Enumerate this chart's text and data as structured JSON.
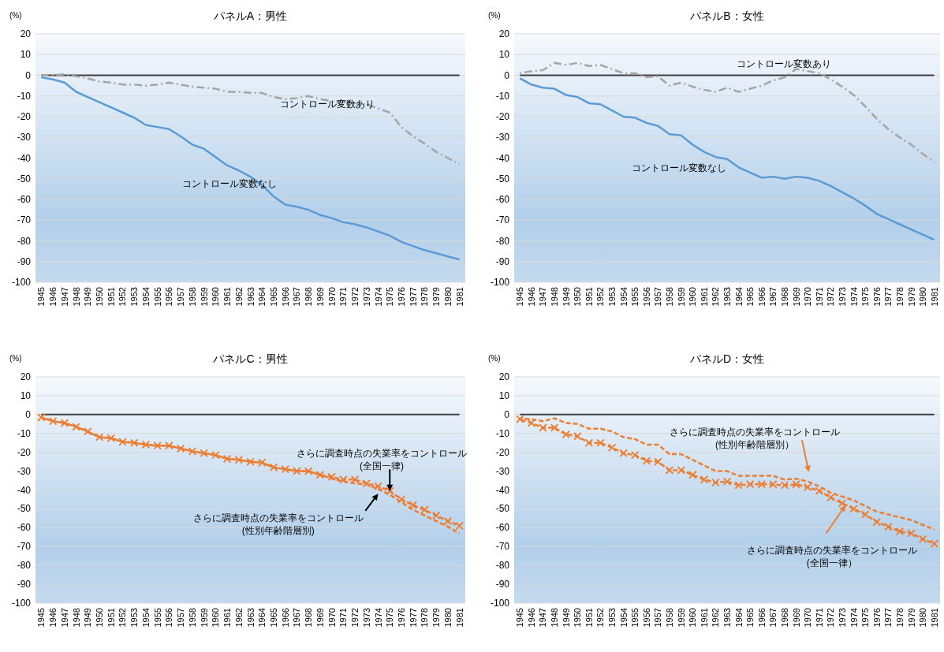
{
  "chart_data": [
    {
      "type": "line",
      "title": "パネルA：男性",
      "ylabel": "(%)",
      "categories": [
        "1945",
        "1946",
        "1947",
        "1948",
        "1949",
        "1950",
        "1951",
        "1952",
        "1953",
        "1954",
        "1955",
        "1956",
        "1957",
        "1958",
        "1959",
        "1960",
        "1961",
        "1962",
        "1963",
        "1964",
        "1965",
        "1966",
        "1967",
        "1968",
        "1969",
        "1970",
        "1971",
        "1972",
        "1973",
        "1974",
        "1975",
        "1976",
        "1977",
        "1978",
        "1979",
        "1980",
        "1981"
      ],
      "ylim": [
        -100,
        20
      ],
      "yticks": [
        -100,
        -90,
        -80,
        -70,
        -60,
        -50,
        -40,
        -30,
        -20,
        -10,
        0,
        10,
        20
      ],
      "grid": "y",
      "series": [
        {
          "color": "#5b9bd5",
          "line_style": "solid",
          "values": [
            -1,
            -2,
            -3.5,
            -8,
            -10.5,
            -13,
            -15.5,
            -18,
            -20.5,
            -24,
            -25,
            -26,
            -29.5,
            -33.5,
            -35.5,
            -39.5,
            -43.5,
            -46,
            -49,
            -53,
            -58.5,
            -62.5,
            -63.5,
            -65,
            -67.5,
            -69,
            -71,
            -72,
            -73.5,
            -75.5,
            -77.5,
            -80.5,
            -82.5,
            -84.5,
            -86,
            -87.5,
            -89
          ]
        },
        {
          "color": "#a5a5a5",
          "line_style": "dashdot",
          "values": [
            0,
            0,
            0.5,
            -0.5,
            -1.5,
            -3,
            -3.5,
            -4.5,
            -4.5,
            -5,
            -4.5,
            -3.5,
            -4.5,
            -5.5,
            -6,
            -6.5,
            -8,
            -8,
            -8.5,
            -8.5,
            -10.5,
            -11.5,
            -11,
            -10,
            -11.5,
            -12.5,
            -13,
            -13.5,
            -14,
            -16,
            -18,
            -25,
            -29.5,
            -33,
            -37,
            -40,
            -43
          ]
        }
      ],
      "ref_lines": [
        {
          "axis": "y",
          "value": 0,
          "color": "#404040"
        }
      ],
      "annotations": [
        "コントロール変数あり",
        "コントロール変数なし"
      ]
    },
    {
      "type": "line",
      "title": "パネルB：女性",
      "ylabel": "(%)",
      "categories": [
        "1945",
        "1946",
        "1947",
        "1948",
        "1949",
        "1950",
        "1951",
        "1952",
        "1953",
        "1954",
        "1955",
        "1956",
        "1957",
        "1958",
        "1959",
        "1960",
        "1961",
        "1962",
        "1963",
        "1964",
        "1965",
        "1966",
        "1967",
        "1968",
        "1969",
        "1970",
        "1971",
        "1972",
        "1973",
        "1974",
        "1975",
        "1976",
        "1977",
        "1978",
        "1979",
        "1980",
        "1981"
      ],
      "ylim": [
        -100,
        20
      ],
      "yticks": [
        -100,
        -90,
        -80,
        -70,
        -60,
        -50,
        -40,
        -30,
        -20,
        -10,
        0,
        10,
        20
      ],
      "grid": "y",
      "series": [
        {
          "color": "#5b9bd5",
          "line_style": "solid",
          "values": [
            -1.5,
            -4.5,
            -6,
            -6.5,
            -9.5,
            -10.5,
            -13.5,
            -14,
            -17,
            -20,
            -20.5,
            -23,
            -24.5,
            -28.5,
            -29,
            -33.5,
            -37,
            -39.5,
            -40.5,
            -44.5,
            -47,
            -49.5,
            -49,
            -50,
            -49,
            -49.5,
            -51,
            -53.5,
            -56.5,
            -59.5,
            -63,
            -67,
            -69.5,
            -72,
            -74.5,
            -77,
            -79.5
          ]
        },
        {
          "color": "#a5a5a5",
          "line_style": "dashdot",
          "values": [
            1,
            2,
            2.5,
            6,
            5,
            6,
            4.5,
            5,
            3,
            1,
            1,
            -1,
            -0.5,
            -5,
            -3.5,
            -5.5,
            -7,
            -8,
            -6,
            -8,
            -6.5,
            -5,
            -2.5,
            -1,
            3,
            2,
            1,
            -2,
            -5.5,
            -9.5,
            -15,
            -21,
            -26,
            -30,
            -33.5,
            -38,
            -42
          ]
        }
      ],
      "ref_lines": [
        {
          "axis": "y",
          "value": 0,
          "color": "#404040"
        }
      ],
      "annotations": [
        "コントロール変数あり",
        "コントロール変数なし"
      ]
    },
    {
      "type": "line",
      "title": "パネルC：男性",
      "ylabel": "(%)",
      "categories": [
        "1945",
        "1946",
        "1947",
        "1948",
        "1949",
        "1950",
        "1951",
        "1952",
        "1953",
        "1954",
        "1955",
        "1956",
        "1957",
        "1958",
        "1959",
        "1960",
        "1961",
        "1962",
        "1963",
        "1964",
        "1965",
        "1966",
        "1967",
        "1968",
        "1969",
        "1970",
        "1971",
        "1972",
        "1973",
        "1974",
        "1975",
        "1976",
        "1977",
        "1978",
        "1979",
        "1980",
        "1981"
      ],
      "ylim": [
        -100,
        20
      ],
      "yticks": [
        -100,
        -90,
        -80,
        -70,
        -60,
        -50,
        -40,
        -30,
        -20,
        -10,
        0,
        10,
        20
      ],
      "grid": "y",
      "series": [
        {
          "color": "#ed7d31",
          "line_style": "dashed",
          "marker": "cross",
          "values": [
            -1.5,
            -3.5,
            -4.5,
            -6.5,
            -9,
            -12,
            -12.5,
            -14.5,
            -15,
            -16,
            -16.5,
            -16.5,
            -18,
            -19.5,
            -20.5,
            -21.5,
            -23.5,
            -24,
            -25,
            -25.5,
            -28,
            -29,
            -30,
            -30,
            -32,
            -33,
            -34.5,
            -34.5,
            -36.5,
            -38,
            -40.5,
            -45,
            -48,
            -50.5,
            -53.5,
            -56.5,
            -59
          ]
        },
        {
          "color": "#ed7d31",
          "line_style": "dashed",
          "values": [
            -1.5,
            -3.5,
            -4.5,
            -6.5,
            -9,
            -12,
            -12.5,
            -14.5,
            -15,
            -16,
            -16.5,
            -16.5,
            -18,
            -19.5,
            -20.5,
            -21.5,
            -23.5,
            -24,
            -25,
            -25.5,
            -28,
            -29,
            -30,
            -30,
            -32,
            -34,
            -35.5,
            -36.5,
            -37,
            -39.5,
            -42.5,
            -46.5,
            -50.5,
            -53.5,
            -56.5,
            -59.5,
            -63
          ]
        }
      ],
      "ref_lines": [
        {
          "axis": "y",
          "value": 0,
          "color": "#404040"
        }
      ],
      "annotations": [
        "さらに調査時点の失業率をコントロール\n(全国一律)",
        "さらに調査時点の失業率をコントロール\n(性別年齢階層別)"
      ]
    },
    {
      "type": "line",
      "title": "パネルD：女性",
      "ylabel": "(%)",
      "categories": [
        "1945",
        "1946",
        "1947",
        "1948",
        "1949",
        "1950",
        "1951",
        "1952",
        "1953",
        "1954",
        "1955",
        "1956",
        "1957",
        "1958",
        "1959",
        "1960",
        "1961",
        "1962",
        "1963",
        "1964",
        "1965",
        "1966",
        "1967",
        "1968",
        "1969",
        "1970",
        "1971",
        "1972",
        "1973",
        "1974",
        "1975",
        "1976",
        "1977",
        "1978",
        "1979",
        "1980",
        "1981"
      ],
      "ylim": [
        -100,
        20
      ],
      "yticks": [
        -100,
        -90,
        -80,
        -70,
        -60,
        -50,
        -40,
        -30,
        -20,
        -10,
        0,
        10,
        20
      ],
      "grid": "y",
      "series": [
        {
          "color": "#ed7d31",
          "line_style": "dashed",
          "values": [
            -2,
            -2.5,
            -3.5,
            -2,
            -4.5,
            -5,
            -7.5,
            -7.5,
            -9,
            -12,
            -13,
            -16,
            -16,
            -21,
            -21,
            -24,
            -27,
            -30,
            -30,
            -32.5,
            -32.5,
            -32.5,
            -32.5,
            -34.5,
            -34,
            -35.5,
            -38,
            -41.5,
            -43.5,
            -45.5,
            -48.5,
            -51.5,
            -53,
            -54.5,
            -56,
            -58.5,
            -61
          ]
        },
        {
          "color": "#ed7d31",
          "line_style": "dashed",
          "marker": "cross",
          "values": [
            -2.5,
            -4.5,
            -7,
            -7,
            -10.5,
            -11.5,
            -15,
            -15,
            -17.5,
            -20.5,
            -21.5,
            -24.5,
            -25,
            -29.5,
            -29.5,
            -32,
            -34.5,
            -36,
            -35.5,
            -37.5,
            -37,
            -37,
            -37,
            -37.5,
            -37,
            -38.5,
            -40.5,
            -44,
            -47,
            -50,
            -53,
            -57,
            -59.5,
            -62,
            -63,
            -66,
            -68.5
          ]
        }
      ],
      "ref_lines": [
        {
          "axis": "y",
          "value": 0,
          "color": "#404040"
        }
      ],
      "annotations": [
        "さらに調査時点の失業率をコントロール\n(性別年齢階層別）",
        "さらに調査時点の失業率をコントロール\n(全国一律）"
      ]
    }
  ]
}
